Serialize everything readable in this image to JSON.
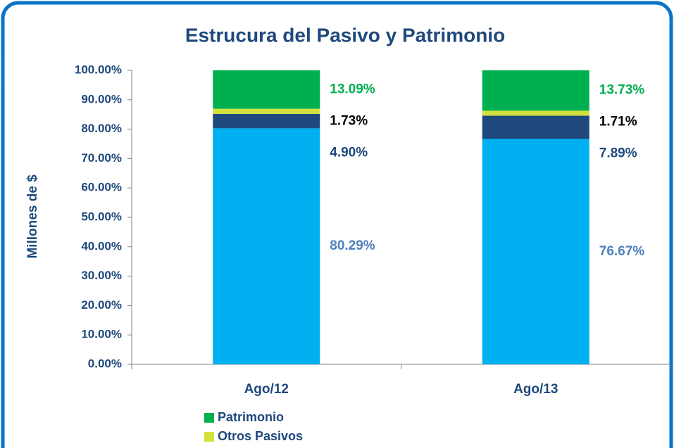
{
  "chart_data": {
    "type": "stacked_bar",
    "title": "Estrucura del Pasivo y Patrimonio",
    "y_label": "Millones de $",
    "categories": [
      "Ago/12",
      "Ago/13"
    ],
    "series": [
      {
        "color": "#00b0f0",
        "label_color": "#4f81bd",
        "values": [
          80.29,
          76.67
        ],
        "value_labels": [
          "80.29%",
          "76.67%"
        ]
      },
      {
        "color": "#1f497d",
        "label_color": "#1f497d",
        "values": [
          4.9,
          7.89
        ],
        "value_labels": [
          "4.90%",
          "7.89%"
        ]
      },
      {
        "name": "Otros Pasivos",
        "color": "#d4e03c",
        "label_color": "#000000",
        "values": [
          1.73,
          1.71
        ],
        "value_labels": [
          "1.73%",
          "1.71%"
        ]
      },
      {
        "name": "Patrimonio",
        "color": "#00b050",
        "label_color": "#00b050",
        "values": [
          13.09,
          13.73
        ],
        "value_labels": [
          "13.09%",
          "13.73%"
        ]
      }
    ],
    "ylim": [
      0,
      100
    ],
    "yticks": [
      {
        "value": 0,
        "label": "0.00%"
      },
      {
        "value": 10,
        "label": "10.00%"
      },
      {
        "value": 20,
        "label": "20.00%"
      },
      {
        "value": 30,
        "label": "30.00%"
      },
      {
        "value": 40,
        "label": "40.00%"
      },
      {
        "value": 50,
        "label": "50.00%"
      },
      {
        "value": 60,
        "label": "60.00%"
      },
      {
        "value": 70,
        "label": "70.00%"
      },
      {
        "value": 80,
        "label": "80.00%"
      },
      {
        "value": 90,
        "label": "90.00%"
      },
      {
        "value": 100,
        "label": "100.00%"
      }
    ]
  }
}
